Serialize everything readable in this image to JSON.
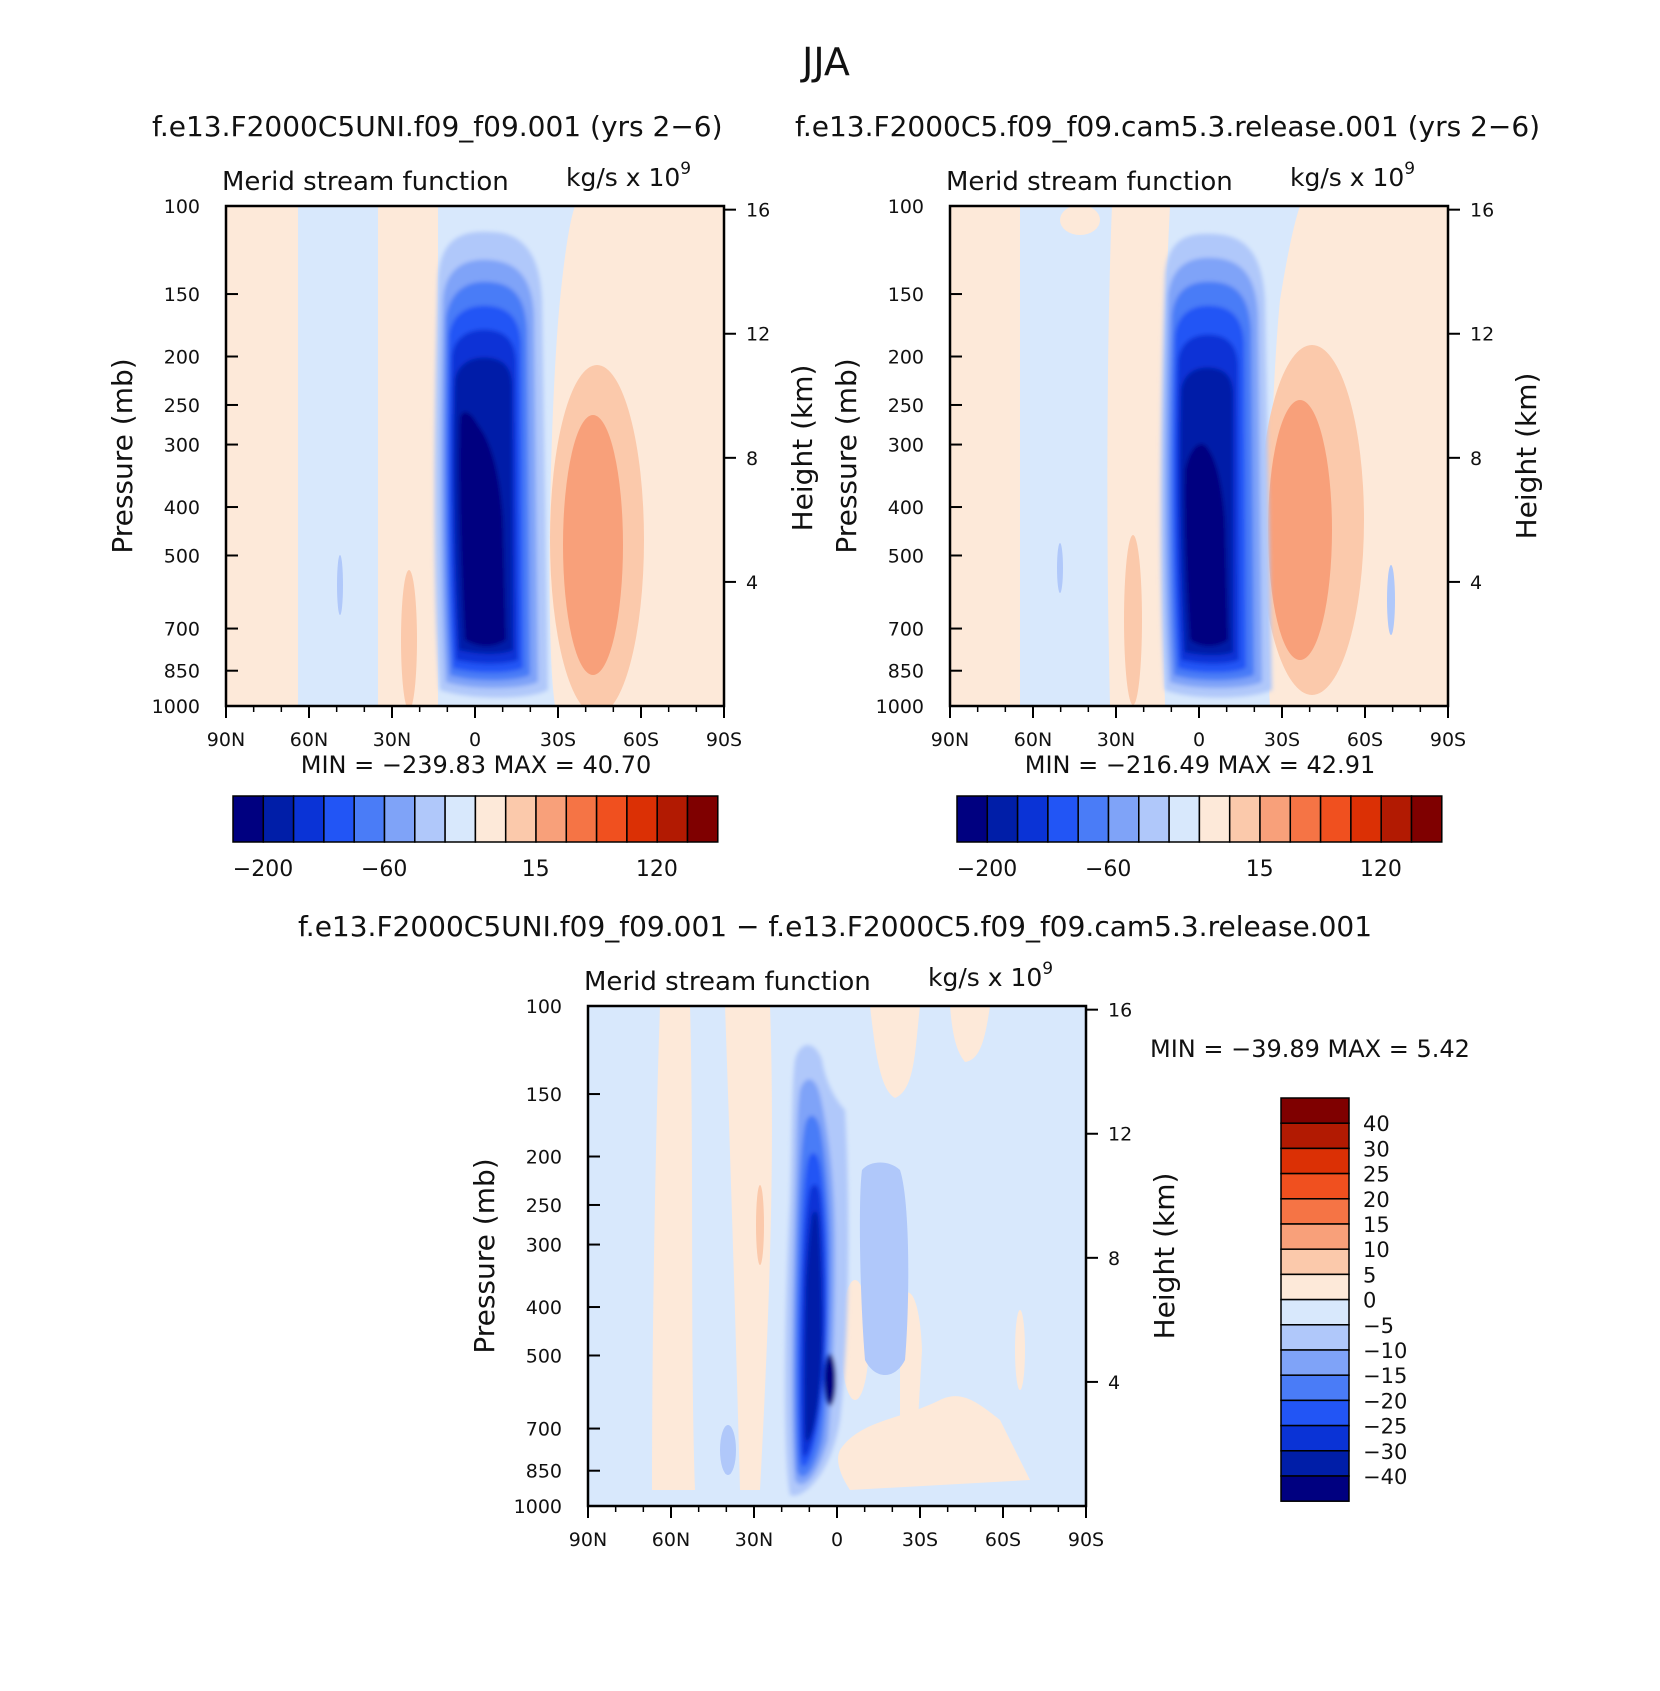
{
  "figure": {
    "title": "JJA"
  },
  "colors": {
    "main_levels": [
      "#000080",
      "#001ea8",
      "#0a33d6",
      "#2255f5",
      "#4a7cf7",
      "#7fa3f8",
      "#b0c8fa",
      "#d8e8fc",
      "#fde9d9",
      "#fbc9ab",
      "#f8a07a",
      "#f57445",
      "#f0501f",
      "#db3005",
      "#b21a02",
      "#7f0000"
    ],
    "diff_levels": [
      "#000080",
      "#001ea8",
      "#0a33d6",
      "#2255f5",
      "#4a7cf7",
      "#7fa3f8",
      "#b0c8fa",
      "#d8e8fc",
      "#fde9d9",
      "#fbc9ab",
      "#f8a07a",
      "#f57445",
      "#f0501f",
      "#db3005",
      "#b21a02",
      "#7f0000"
    ]
  },
  "chart_data": [
    {
      "type": "heatmap",
      "panel_title": "f.e13.F2000C5UNI.f09_f09.001  (yrs  2−6)",
      "left_string": "Merid  stream  function",
      "right_string": "kg/s  x  10",
      "right_string_exp": "9",
      "ylabel": "Pressure  (mb)",
      "ylabel_right": "Height  (km)",
      "x_ticks": [
        "90N",
        "60N",
        "30N",
        "0",
        "30S",
        "60S",
        "90S"
      ],
      "x_range": [
        90,
        -90
      ],
      "y_ticks": [
        "100",
        "150",
        "200",
        "250",
        "300",
        "400",
        "500",
        "700",
        "850",
        "1000"
      ],
      "y_range": [
        100,
        1000
      ],
      "y_scale": "log",
      "y_right_ticks": [
        "16",
        "12",
        "8",
        "4"
      ],
      "min_max": "MIN  =  −239.83    MAX  =    40.70",
      "colorbar_labels": [
        "−200",
        "−60",
        "15",
        "120"
      ],
      "features": [
        {
          "kind": "cell",
          "sign": "negative",
          "center_lat": 0,
          "center_p": 450,
          "min_value": -239.83
        },
        {
          "kind": "cell",
          "sign": "positive",
          "center_lat": -40,
          "center_p": 500,
          "max_value": 40.7
        }
      ]
    },
    {
      "type": "heatmap",
      "panel_title": "f.e13.F2000C5.f09_f09.cam5.3.release.001  (yrs  2−6)",
      "left_string": "Merid  stream  function",
      "right_string": "kg/s  x  10",
      "right_string_exp": "9",
      "ylabel": "Pressure  (mb)",
      "ylabel_right": "Height  (km)",
      "x_ticks": [
        "90N",
        "60N",
        "30N",
        "0",
        "30S",
        "60S",
        "90S"
      ],
      "x_range": [
        90,
        -90
      ],
      "y_ticks": [
        "100",
        "150",
        "200",
        "250",
        "300",
        "400",
        "500",
        "700",
        "850",
        "1000"
      ],
      "y_range": [
        100,
        1000
      ],
      "y_scale": "log",
      "y_right_ticks": [
        "16",
        "12",
        "8",
        "4"
      ],
      "min_max": "MIN  =  −216.49    MAX  =    42.91",
      "colorbar_labels": [
        "−200",
        "−60",
        "15",
        "120"
      ],
      "features": [
        {
          "kind": "cell",
          "sign": "negative",
          "center_lat": 2,
          "center_p": 450,
          "min_value": -216.49
        },
        {
          "kind": "cell",
          "sign": "positive",
          "center_lat": -42,
          "center_p": 450,
          "max_value": 42.91
        }
      ]
    },
    {
      "type": "heatmap",
      "panel_title": "f.e13.F2000C5UNI.f09_f09.001  −  f.e13.F2000C5.f09_f09.cam5.3.release.001",
      "left_string": "Merid  stream  function",
      "right_string": "kg/s  x  10",
      "right_string_exp": "9",
      "ylabel": "Pressure  (mb)",
      "ylabel_right": "Height  (km)",
      "x_ticks": [
        "90N",
        "60N",
        "30N",
        "0",
        "30S",
        "60S",
        "90S"
      ],
      "x_range": [
        90,
        -90
      ],
      "y_ticks": [
        "100",
        "150",
        "200",
        "250",
        "300",
        "400",
        "500",
        "700",
        "850",
        "1000"
      ],
      "y_range": [
        100,
        1000
      ],
      "y_scale": "log",
      "y_right_ticks": [
        "16",
        "12",
        "8",
        "4"
      ],
      "min_max": "MIN  =  −39.89    MAX  =     5.42",
      "colorbar_labels": [
        "40",
        "30",
        "25",
        "20",
        "15",
        "10",
        "5",
        "0",
        "−5",
        "−10",
        "−15",
        "−20",
        "−25",
        "−30",
        "−40"
      ],
      "features": [
        {
          "kind": "cell",
          "sign": "negative",
          "center_lat": 8,
          "center_p": 500,
          "min_value": -39.89
        },
        {
          "kind": "cell",
          "sign": "positive",
          "center_lat": -15,
          "center_p": 900,
          "max_value": 5.42
        }
      ]
    }
  ]
}
